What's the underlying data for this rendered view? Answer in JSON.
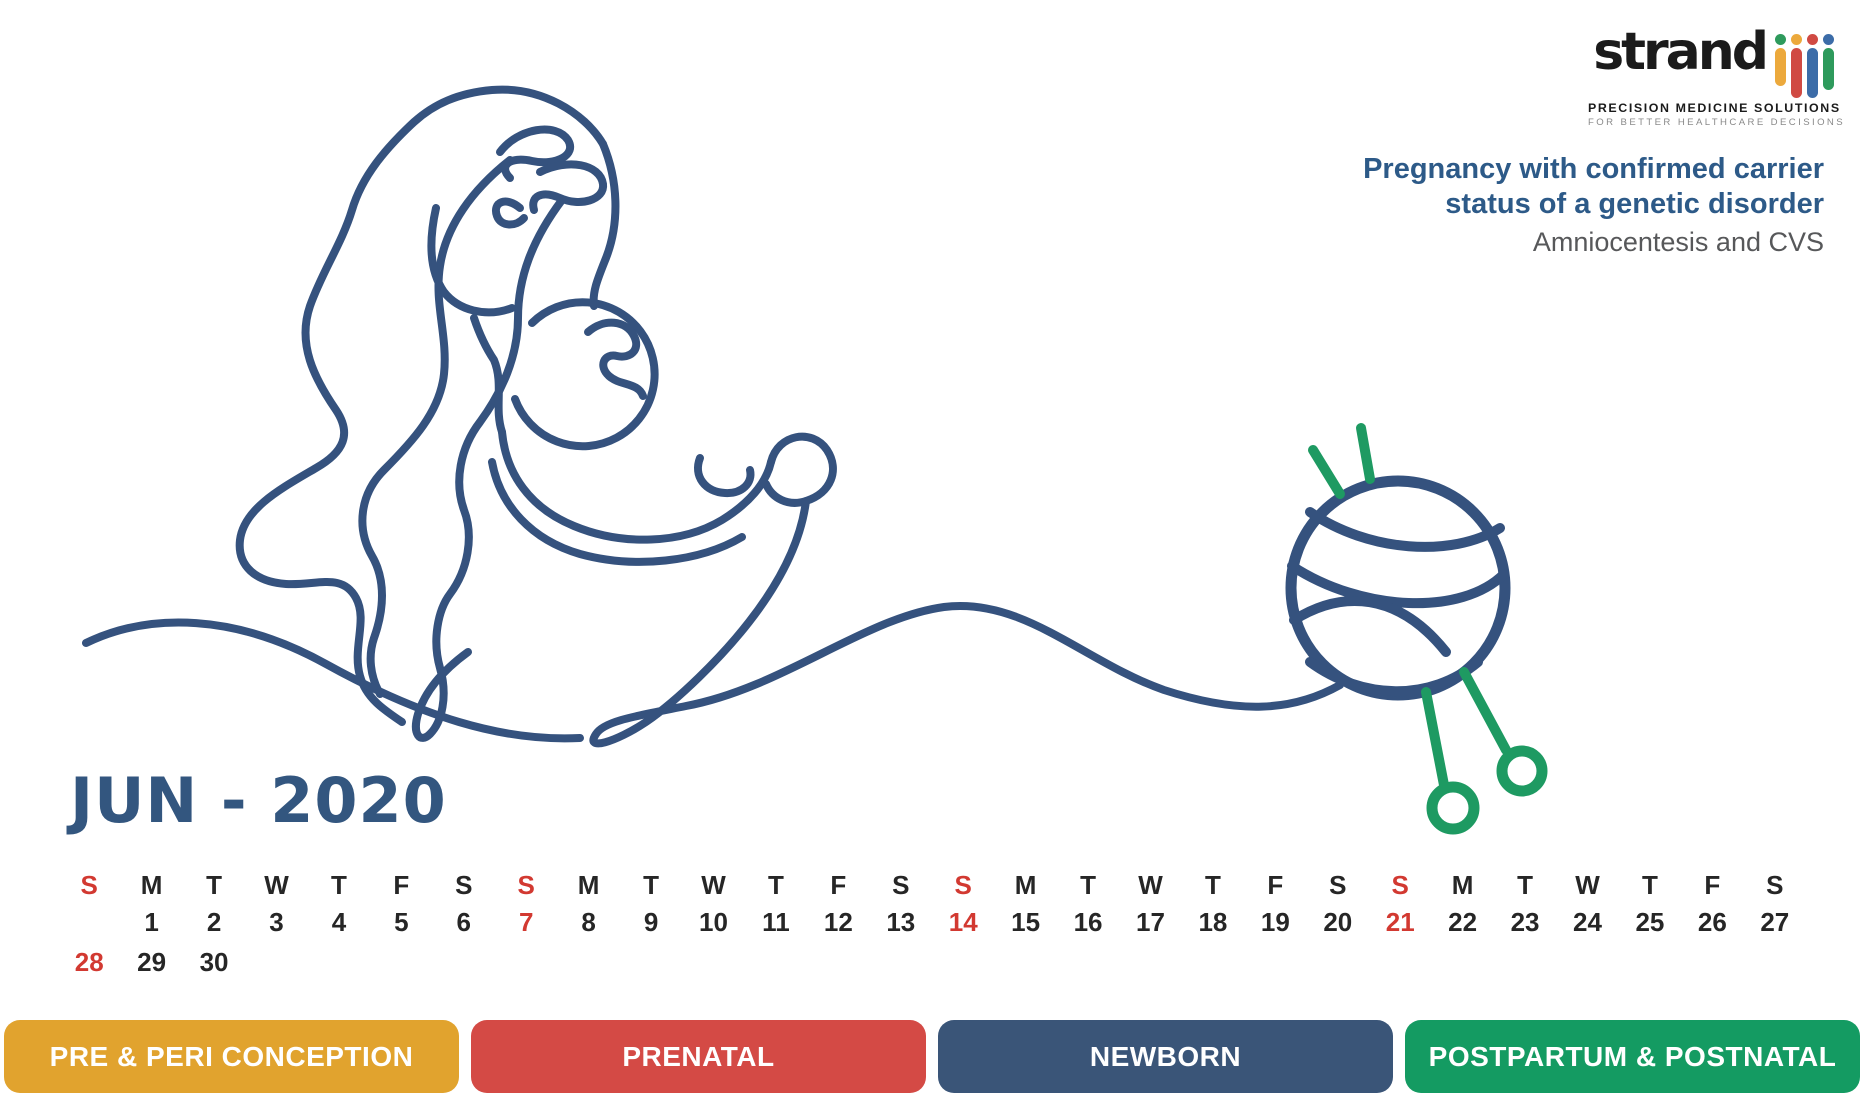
{
  "colors": {
    "ink_blue": "#35527E",
    "needle_green": "#1E9A62",
    "headline_blue": "#2D5A88",
    "headline_gray": "#57585A",
    "title_blue": "#33567F",
    "calendar_red": "#D23931",
    "calendar_ink": "#262626",
    "logo_black": "#1B1B1B",
    "logo_gray": "#8A8A8A"
  },
  "brand": {
    "name": "strand",
    "tagline": "PRECISION MEDICINE SOLUTIONS",
    "subtagline": "FOR BETTER HEALTHCARE DECISIONS",
    "mark_dot_colors": [
      "#2E9A5C",
      "#ECA93C",
      "#D04A43",
      "#3C6CA8"
    ],
    "mark_bar_colors": [
      "#ECA93C",
      "#D04A43",
      "#3C6CA8",
      "#2E9A5C"
    ]
  },
  "headline": {
    "line1": "Pregnancy with confirmed carrier",
    "line2": "status of a genetic disorder",
    "line3": "Amniocentesis and CVS"
  },
  "calendar": {
    "title": "JUN - 2020",
    "columns": [
      {
        "day": "S",
        "day_red": true,
        "date": "",
        "date_red": false,
        "date2": "28",
        "date2_red": true
      },
      {
        "day": "M",
        "day_red": false,
        "date": "1",
        "date_red": false,
        "date2": "29",
        "date2_red": false
      },
      {
        "day": "T",
        "day_red": false,
        "date": "2",
        "date_red": false,
        "date2": "30",
        "date2_red": false
      },
      {
        "day": "W",
        "day_red": false,
        "date": "3",
        "date_red": false,
        "date2": "",
        "date2_red": false
      },
      {
        "day": "T",
        "day_red": false,
        "date": "4",
        "date_red": false,
        "date2": "",
        "date2_red": false
      },
      {
        "day": "F",
        "day_red": false,
        "date": "5",
        "date_red": false,
        "date2": "",
        "date2_red": false
      },
      {
        "day": "S",
        "day_red": false,
        "date": "6",
        "date_red": false,
        "date2": "",
        "date2_red": false
      },
      {
        "day": "S",
        "day_red": true,
        "date": "7",
        "date_red": true,
        "date2": "",
        "date2_red": false
      },
      {
        "day": "M",
        "day_red": false,
        "date": "8",
        "date_red": false,
        "date2": "",
        "date2_red": false
      },
      {
        "day": "T",
        "day_red": false,
        "date": "9",
        "date_red": false,
        "date2": "",
        "date2_red": false
      },
      {
        "day": "W",
        "day_red": false,
        "date": "10",
        "date_red": false,
        "date2": "",
        "date2_red": false
      },
      {
        "day": "T",
        "day_red": false,
        "date": "11",
        "date_red": false,
        "date2": "",
        "date2_red": false
      },
      {
        "day": "F",
        "day_red": false,
        "date": "12",
        "date_red": false,
        "date2": "",
        "date2_red": false
      },
      {
        "day": "S",
        "day_red": false,
        "date": "13",
        "date_red": false,
        "date2": "",
        "date2_red": false
      },
      {
        "day": "S",
        "day_red": true,
        "date": "14",
        "date_red": true,
        "date2": "",
        "date2_red": false
      },
      {
        "day": "M",
        "day_red": false,
        "date": "15",
        "date_red": false,
        "date2": "",
        "date2_red": false
      },
      {
        "day": "T",
        "day_red": false,
        "date": "16",
        "date_red": false,
        "date2": "",
        "date2_red": false
      },
      {
        "day": "W",
        "day_red": false,
        "date": "17",
        "date_red": false,
        "date2": "",
        "date2_red": false
      },
      {
        "day": "T",
        "day_red": false,
        "date": "18",
        "date_red": false,
        "date2": "",
        "date2_red": false
      },
      {
        "day": "F",
        "day_red": false,
        "date": "19",
        "date_red": false,
        "date2": "",
        "date2_red": false
      },
      {
        "day": "S",
        "day_red": false,
        "date": "20",
        "date_red": false,
        "date2": "",
        "date2_red": false
      },
      {
        "day": "S",
        "day_red": true,
        "date": "21",
        "date_red": true,
        "date2": "",
        "date2_red": false
      },
      {
        "day": "M",
        "day_red": false,
        "date": "22",
        "date_red": false,
        "date2": "",
        "date2_red": false
      },
      {
        "day": "T",
        "day_red": false,
        "date": "23",
        "date_red": false,
        "date2": "",
        "date2_red": false
      },
      {
        "day": "W",
        "day_red": false,
        "date": "24",
        "date_red": false,
        "date2": "",
        "date2_red": false
      },
      {
        "day": "T",
        "day_red": false,
        "date": "25",
        "date_red": false,
        "date2": "",
        "date2_red": false
      },
      {
        "day": "F",
        "day_red": false,
        "date": "26",
        "date_red": false,
        "date2": "",
        "date2_red": false
      },
      {
        "day": "S",
        "day_red": false,
        "date": "27",
        "date_red": false,
        "date2": "",
        "date2_red": false
      }
    ]
  },
  "timeline": {
    "tabs": [
      {
        "label": "PRE & PERI CONCEPTION",
        "color": "#E1A32E"
      },
      {
        "label": "PRENATAL",
        "color": "#D44A45"
      },
      {
        "label": "NEWBORN",
        "color": "#3A5578"
      },
      {
        "label": "POSTPARTUM & POSTNATAL",
        "color": "#149B62"
      }
    ]
  }
}
